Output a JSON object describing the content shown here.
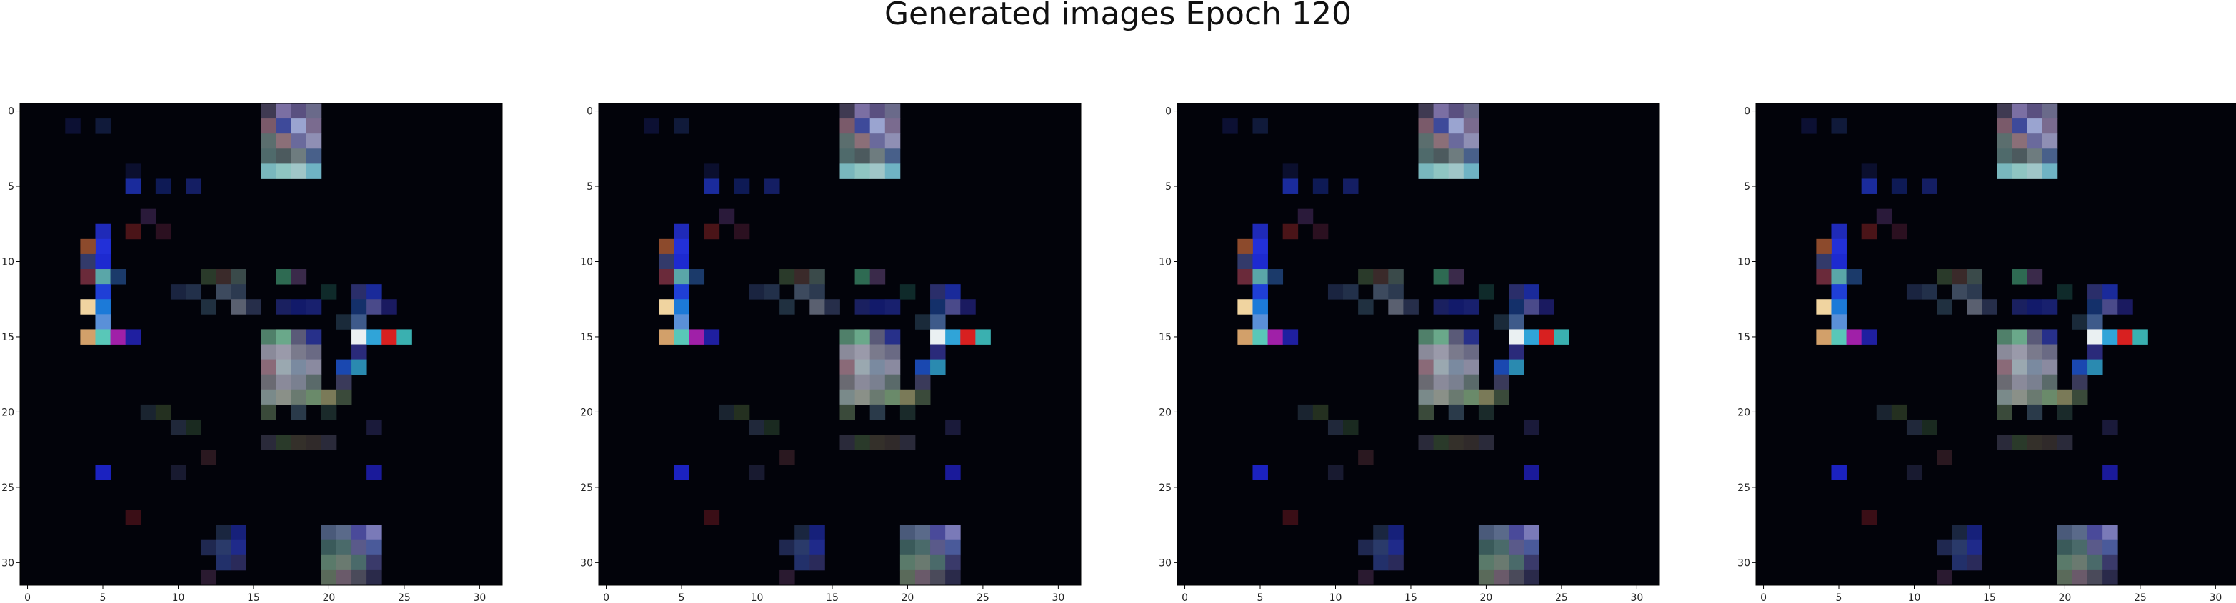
{
  "figure": {
    "title": "Generated images Epoch 120"
  },
  "chart_data": [
    {
      "type": "heatmap",
      "subtype": "rgb-image",
      "grid_size": [
        32,
        32
      ],
      "background": "#02030a",
      "x_ticks": [
        "0",
        "5",
        "10",
        "15",
        "20",
        "25",
        "30"
      ],
      "y_ticks": [
        "0",
        "5",
        "10",
        "15",
        "20",
        "25",
        "30"
      ],
      "xlim": [
        -0.5,
        31.5
      ],
      "ylim": [
        31.5,
        -0.5
      ],
      "highlights": [
        {
          "x": 16,
          "y": 0,
          "color": "#3f3a52"
        },
        {
          "x": 17,
          "y": 0,
          "color": "#7b6fa3"
        },
        {
          "x": 18,
          "y": 0,
          "color": "#5a5080"
        },
        {
          "x": 19,
          "y": 0,
          "color": "#6a6a8a"
        },
        {
          "x": 16,
          "y": 1,
          "color": "#7a5a6a"
        },
        {
          "x": 17,
          "y": 1,
          "color": "#3e4a9a"
        },
        {
          "x": 18,
          "y": 1,
          "color": "#9aa4d0"
        },
        {
          "x": 19,
          "y": 1,
          "color": "#7a6b8f"
        },
        {
          "x": 16,
          "y": 2,
          "color": "#5b6e6e"
        },
        {
          "x": 17,
          "y": 2,
          "color": "#8b6f78"
        },
        {
          "x": 18,
          "y": 2,
          "color": "#6a6a9c"
        },
        {
          "x": 19,
          "y": 2,
          "color": "#8f8fb4"
        },
        {
          "x": 16,
          "y": 3,
          "color": "#4f6a6b"
        },
        {
          "x": 17,
          "y": 3,
          "color": "#4c5a5e"
        },
        {
          "x": 18,
          "y": 3,
          "color": "#6e7c7f"
        },
        {
          "x": 19,
          "y": 3,
          "color": "#48608a"
        },
        {
          "x": 16,
          "y": 4,
          "color": "#79b7bd"
        },
        {
          "x": 17,
          "y": 4,
          "color": "#8fc5c2"
        },
        {
          "x": 18,
          "y": 4,
          "color": "#a0c6c8"
        },
        {
          "x": 19,
          "y": 4,
          "color": "#6fb3c4"
        },
        {
          "x": 3,
          "y": 1,
          "color": "#0c1033"
        },
        {
          "x": 5,
          "y": 1,
          "color": "#101a3a"
        },
        {
          "x": 7,
          "y": 4,
          "color": "#0b0f2e"
        },
        {
          "x": 7,
          "y": 5,
          "color": "#1a2b9c"
        },
        {
          "x": 9,
          "y": 5,
          "color": "#0e1a55"
        },
        {
          "x": 11,
          "y": 5,
          "color": "#141e63"
        },
        {
          "x": 8,
          "y": 7,
          "color": "#2a1a3a"
        },
        {
          "x": 7,
          "y": 8,
          "color": "#4a1418"
        },
        {
          "x": 9,
          "y": 8,
          "color": "#2b1020"
        },
        {
          "x": 5,
          "y": 8,
          "color": "#1f2ab8"
        },
        {
          "x": 5,
          "y": 9,
          "color": "#2230d8"
        },
        {
          "x": 4,
          "y": 9,
          "color": "#8c4a2c"
        },
        {
          "x": 4,
          "y": 10,
          "color": "#333a6a"
        },
        {
          "x": 5,
          "y": 10,
          "color": "#1d2ad0"
        },
        {
          "x": 4,
          "y": 11,
          "color": "#6a2a3a"
        },
        {
          "x": 5,
          "y": 11,
          "color": "#5aa6a8"
        },
        {
          "x": 6,
          "y": 11,
          "color": "#1b3a6a"
        },
        {
          "x": 5,
          "y": 12,
          "color": "#1f3fd6"
        },
        {
          "x": 4,
          "y": 13,
          "color": "#f0d4a0"
        },
        {
          "x": 5,
          "y": 13,
          "color": "#1c7ad8"
        },
        {
          "x": 5,
          "y": 14,
          "color": "#5a90d8"
        },
        {
          "x": 4,
          "y": 15,
          "color": "#d2a06a"
        },
        {
          "x": 5,
          "y": 15,
          "color": "#59c7b8"
        },
        {
          "x": 6,
          "y": 15,
          "color": "#a020a8"
        },
        {
          "x": 7,
          "y": 15,
          "color": "#1f1fa0"
        },
        {
          "x": 12,
          "y": 11,
          "color": "#2a3a2a"
        },
        {
          "x": 13,
          "y": 11,
          "color": "#3a2a2a"
        },
        {
          "x": 14,
          "y": 11,
          "color": "#3a4a4a"
        },
        {
          "x": 17,
          "y": 11,
          "color": "#2e6a52"
        },
        {
          "x": 18,
          "y": 11,
          "color": "#3a2a4a"
        },
        {
          "x": 10,
          "y": 12,
          "color": "#1a2440"
        },
        {
          "x": 11,
          "y": 12,
          "color": "#22304a"
        },
        {
          "x": 13,
          "y": 12,
          "color": "#3d4a5e"
        },
        {
          "x": 14,
          "y": 12,
          "color": "#2c3a50"
        },
        {
          "x": 12,
          "y": 13,
          "color": "#203040"
        },
        {
          "x": 14,
          "y": 13,
          "color": "#5a6070"
        },
        {
          "x": 15,
          "y": 13,
          "color": "#262e4a"
        },
        {
          "x": 17,
          "y": 13,
          "color": "#1a2060"
        },
        {
          "x": 18,
          "y": 13,
          "color": "#121a6a"
        },
        {
          "x": 19,
          "y": 13,
          "color": "#18206e"
        },
        {
          "x": 20,
          "y": 12,
          "color": "#0f2a2a"
        },
        {
          "x": 22,
          "y": 12,
          "color": "#2a2e6a"
        },
        {
          "x": 23,
          "y": 12,
          "color": "#1a2a9a"
        },
        {
          "x": 22,
          "y": 13,
          "color": "#14306a"
        },
        {
          "x": 23,
          "y": 13,
          "color": "#4a4a8a"
        },
        {
          "x": 24,
          "y": 13,
          "color": "#1a1a60"
        },
        {
          "x": 21,
          "y": 14,
          "color": "#1a2a3a"
        },
        {
          "x": 22,
          "y": 14,
          "color": "#3e5a8a"
        },
        {
          "x": 16,
          "y": 15,
          "color": "#50806a"
        },
        {
          "x": 17,
          "y": 15,
          "color": "#6aa88a"
        },
        {
          "x": 18,
          "y": 15,
          "color": "#5a5a78"
        },
        {
          "x": 19,
          "y": 15,
          "color": "#27308a"
        },
        {
          "x": 22,
          "y": 15,
          "color": "#eaf0f2"
        },
        {
          "x": 23,
          "y": 15,
          "color": "#30a4d8"
        },
        {
          "x": 24,
          "y": 15,
          "color": "#d82020"
        },
        {
          "x": 25,
          "y": 15,
          "color": "#3ab0b0"
        },
        {
          "x": 16,
          "y": 16,
          "color": "#8a8a9a"
        },
        {
          "x": 17,
          "y": 16,
          "color": "#9a9aaa"
        },
        {
          "x": 18,
          "y": 16,
          "color": "#7a7a8c"
        },
        {
          "x": 19,
          "y": 16,
          "color": "#6a6a84"
        },
        {
          "x": 22,
          "y": 16,
          "color": "#2a2a7a"
        },
        {
          "x": 16,
          "y": 17,
          "color": "#8a6a78"
        },
        {
          "x": 17,
          "y": 17,
          "color": "#9aa8b0"
        },
        {
          "x": 18,
          "y": 17,
          "color": "#7a8aa0"
        },
        {
          "x": 19,
          "y": 17,
          "color": "#8a8aa0"
        },
        {
          "x": 21,
          "y": 17,
          "color": "#1a48b0"
        },
        {
          "x": 22,
          "y": 17,
          "color": "#2a8ab0"
        },
        {
          "x": 16,
          "y": 18,
          "color": "#6a6a72"
        },
        {
          "x": 17,
          "y": 18,
          "color": "#8a8a9a"
        },
        {
          "x": 18,
          "y": 18,
          "color": "#7a8090"
        },
        {
          "x": 19,
          "y": 18,
          "color": "#5a6a6a"
        },
        {
          "x": 21,
          "y": 18,
          "color": "#3a3a5a"
        },
        {
          "x": 16,
          "y": 19,
          "color": "#7a8a8a"
        },
        {
          "x": 17,
          "y": 19,
          "color": "#8a9088"
        },
        {
          "x": 18,
          "y": 19,
          "color": "#6a7a70"
        },
        {
          "x": 19,
          "y": 19,
          "color": "#6a8a6a"
        },
        {
          "x": 20,
          "y": 19,
          "color": "#7a7a58"
        },
        {
          "x": 21,
          "y": 19,
          "color": "#3a4a3a"
        },
        {
          "x": 16,
          "y": 20,
          "color": "#3a4a3a"
        },
        {
          "x": 18,
          "y": 20,
          "color": "#2a3a4a"
        },
        {
          "x": 20,
          "y": 20,
          "color": "#1a2a2a"
        },
        {
          "x": 8,
          "y": 20,
          "color": "#1a2430"
        },
        {
          "x": 9,
          "y": 20,
          "color": "#243020"
        },
        {
          "x": 10,
          "y": 21,
          "color": "#20283a"
        },
        {
          "x": 11,
          "y": 21,
          "color": "#1a2a20"
        },
        {
          "x": 16,
          "y": 22,
          "color": "#2a2a3a"
        },
        {
          "x": 17,
          "y": 22,
          "color": "#2a3a2a"
        },
        {
          "x": 18,
          "y": 22,
          "color": "#34302a"
        },
        {
          "x": 19,
          "y": 22,
          "color": "#302a2a"
        },
        {
          "x": 20,
          "y": 22,
          "color": "#2a2a3a"
        },
        {
          "x": 23,
          "y": 21,
          "color": "#1a1a3a"
        },
        {
          "x": 5,
          "y": 24,
          "color": "#1b22c0"
        },
        {
          "x": 23,
          "y": 24,
          "color": "#1a1a9a"
        },
        {
          "x": 12,
          "y": 23,
          "color": "#2a1820"
        },
        {
          "x": 10,
          "y": 24,
          "color": "#181a30"
        },
        {
          "x": 7,
          "y": 27,
          "color": "#3a0e16"
        },
        {
          "x": 13,
          "y": 28,
          "color": "#1a2640"
        },
        {
          "x": 14,
          "y": 28,
          "color": "#16207a"
        },
        {
          "x": 12,
          "y": 29,
          "color": "#1f2850"
        },
        {
          "x": 13,
          "y": 29,
          "color": "#2a3a6a"
        },
        {
          "x": 14,
          "y": 29,
          "color": "#1f2a8a"
        },
        {
          "x": 13,
          "y": 30,
          "color": "#22306a"
        },
        {
          "x": 14,
          "y": 30,
          "color": "#2a2a5a"
        },
        {
          "x": 12,
          "y": 31,
          "color": "#2a1a30"
        },
        {
          "x": 20,
          "y": 28,
          "color": "#4a5a7a"
        },
        {
          "x": 21,
          "y": 28,
          "color": "#5a6a8a"
        },
        {
          "x": 22,
          "y": 28,
          "color": "#4a4a9a"
        },
        {
          "x": 23,
          "y": 28,
          "color": "#7a7ab8"
        },
        {
          "x": 20,
          "y": 29,
          "color": "#3a5a5a"
        },
        {
          "x": 21,
          "y": 29,
          "color": "#4a6a6a"
        },
        {
          "x": 22,
          "y": 29,
          "color": "#5a5a8a"
        },
        {
          "x": 23,
          "y": 29,
          "color": "#4a5a9a"
        },
        {
          "x": 20,
          "y": 30,
          "color": "#5a7a6a"
        },
        {
          "x": 21,
          "y": 30,
          "color": "#6a7a70"
        },
        {
          "x": 22,
          "y": 30,
          "color": "#4a6a6a"
        },
        {
          "x": 23,
          "y": 30,
          "color": "#3a3a6a"
        },
        {
          "x": 20,
          "y": 31,
          "color": "#5a6a5a"
        },
        {
          "x": 21,
          "y": 31,
          "color": "#6a5a6a"
        },
        {
          "x": 22,
          "y": 31,
          "color": "#4a4a5a"
        },
        {
          "x": 23,
          "y": 31,
          "color": "#2a2a4a"
        }
      ]
    },
    {
      "type": "heatmap",
      "subtype": "rgb-image",
      "grid_size": [
        32,
        32
      ],
      "x_ticks": [
        "0",
        "5",
        "10",
        "15",
        "20",
        "25",
        "30"
      ],
      "y_ticks": [
        "0",
        "5",
        "10",
        "15",
        "20",
        "25",
        "30"
      ],
      "xlim": [
        -0.5,
        31.5
      ],
      "ylim": [
        31.5,
        -0.5
      ],
      "same_as_panel": 0
    },
    {
      "type": "heatmap",
      "subtype": "rgb-image",
      "grid_size": [
        32,
        32
      ],
      "x_ticks": [
        "0",
        "5",
        "10",
        "15",
        "20",
        "25",
        "30"
      ],
      "y_ticks": [
        "0",
        "5",
        "10",
        "15",
        "20",
        "25",
        "30"
      ],
      "xlim": [
        -0.5,
        31.5
      ],
      "ylim": [
        31.5,
        -0.5
      ],
      "same_as_panel": 0
    },
    {
      "type": "heatmap",
      "subtype": "rgb-image",
      "grid_size": [
        32,
        32
      ],
      "x_ticks": [
        "0",
        "5",
        "10",
        "15",
        "20",
        "25",
        "30"
      ],
      "y_ticks": [
        "0",
        "5",
        "10",
        "15",
        "20",
        "25",
        "30"
      ],
      "xlim": [
        -0.5,
        31.5
      ],
      "ylim": [
        31.5,
        -0.5
      ],
      "same_as_panel": 0
    }
  ]
}
